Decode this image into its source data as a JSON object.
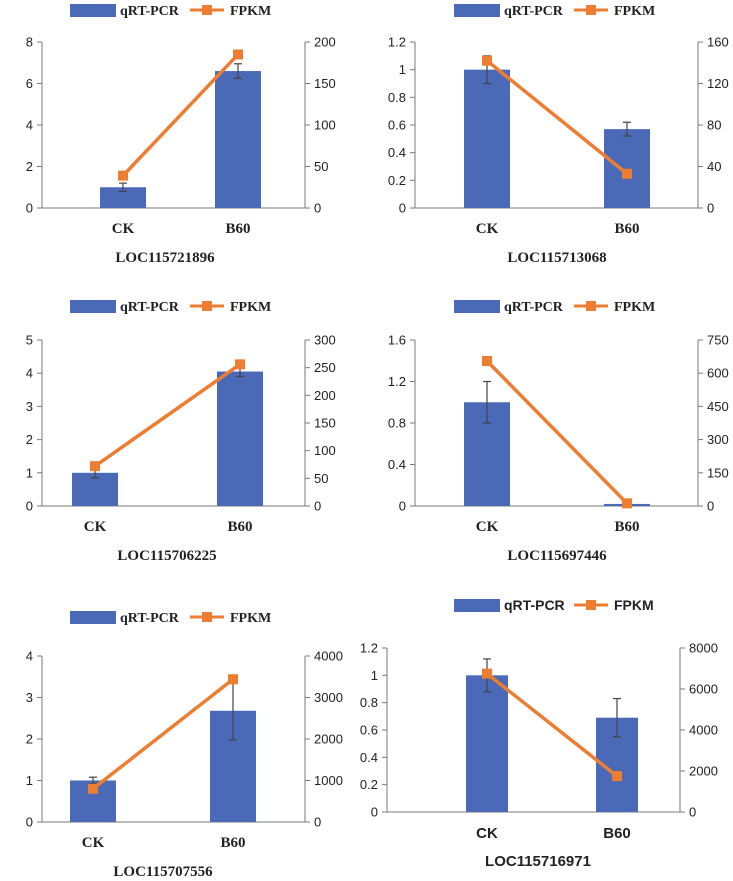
{
  "colors": {
    "bar": "#4a6ab8",
    "line": "#ed7d31",
    "axis": "#7a7a7a",
    "errorbar": "#444444"
  },
  "legend": {
    "bar_label": "qRT-PCR",
    "line_label": "FPKM"
  },
  "chart_data": [
    {
      "type": "bar",
      "title": "LOC115721896",
      "categories": [
        "CK",
        "B60"
      ],
      "series": [
        {
          "name": "qRT-PCR",
          "type": "bar",
          "axis": "left",
          "values": [
            1.0,
            6.6
          ],
          "errors": [
            0.2,
            0.35
          ]
        },
        {
          "name": "FPKM",
          "type": "line",
          "axis": "right",
          "values": [
            39,
            185
          ]
        }
      ],
      "ylim_left": [
        0,
        8
      ],
      "yticks_left": [
        "0",
        "2",
        "4",
        "6",
        "8"
      ],
      "ylim_right": [
        0,
        200
      ],
      "yticks_right": [
        "0",
        "50",
        "100",
        "150",
        "200"
      ]
    },
    {
      "type": "bar",
      "title": "LOC115713068",
      "categories": [
        "CK",
        "B60"
      ],
      "series": [
        {
          "name": "qRT-PCR",
          "type": "bar",
          "axis": "left",
          "values": [
            1.0,
            0.57
          ],
          "errors": [
            0.1,
            0.05
          ]
        },
        {
          "name": "FPKM",
          "type": "line",
          "axis": "right",
          "values": [
            142,
            33
          ]
        }
      ],
      "ylim_left": [
        0,
        1.2
      ],
      "yticks_left": [
        "0",
        "0.2",
        "0.4",
        "0.6",
        "0.8",
        "1",
        "1.2"
      ],
      "ylim_right": [
        0,
        160
      ],
      "yticks_right": [
        "0",
        "40",
        "80",
        "120",
        "160"
      ]
    },
    {
      "type": "bar",
      "title": "LOC115706225",
      "categories": [
        "CK",
        "B60"
      ],
      "series": [
        {
          "name": "qRT-PCR",
          "type": "bar",
          "axis": "left",
          "values": [
            1.0,
            4.05
          ],
          "errors": [
            0.15,
            0.15
          ]
        },
        {
          "name": "FPKM",
          "type": "line",
          "axis": "right",
          "values": [
            72,
            256
          ]
        }
      ],
      "ylim_left": [
        0,
        5
      ],
      "yticks_left": [
        "0",
        "1",
        "2",
        "3",
        "4",
        "5"
      ],
      "ylim_right": [
        0,
        300
      ],
      "yticks_right": [
        "0",
        "50",
        "100",
        "150",
        "200",
        "250",
        "300"
      ]
    },
    {
      "type": "bar",
      "title": "LOC115697446",
      "categories": [
        "CK",
        "B60"
      ],
      "series": [
        {
          "name": "qRT-PCR",
          "type": "bar",
          "axis": "left",
          "values": [
            1.0,
            0.02
          ],
          "errors": [
            0.2,
            0.0
          ]
        },
        {
          "name": "FPKM",
          "type": "line",
          "axis": "right",
          "values": [
            655,
            12
          ]
        }
      ],
      "ylim_left": [
        0,
        1.6
      ],
      "yticks_left": [
        "0",
        "0.4",
        "0.8",
        "1.2",
        "1.6"
      ],
      "ylim_right": [
        0,
        750
      ],
      "yticks_right": [
        "0",
        "150",
        "300",
        "450",
        "600",
        "750"
      ]
    },
    {
      "type": "bar",
      "title": "LOC115707556",
      "categories": [
        "CK",
        "B60"
      ],
      "series": [
        {
          "name": "qRT-PCR",
          "type": "bar",
          "axis": "left",
          "values": [
            1.0,
            2.68
          ],
          "errors": [
            0.08,
            0.7
          ]
        },
        {
          "name": "FPKM",
          "type": "line",
          "axis": "right",
          "values": [
            800,
            3440
          ]
        }
      ],
      "ylim_left": [
        0,
        4
      ],
      "yticks_left": [
        "0",
        "1",
        "2",
        "3",
        "4"
      ],
      "ylim_right": [
        0,
        4000
      ],
      "yticks_right": [
        "0",
        "1000",
        "2000",
        "3000",
        "4000"
      ]
    },
    {
      "type": "bar",
      "title": "LOC115716971",
      "categories": [
        "CK",
        "B60"
      ],
      "series": [
        {
          "name": "qRT-PCR",
          "type": "bar",
          "axis": "left",
          "values": [
            1.0,
            0.69
          ],
          "errors": [
            0.12,
            0.14
          ]
        },
        {
          "name": "FPKM",
          "type": "line",
          "axis": "right",
          "values": [
            6750,
            1750
          ]
        }
      ],
      "ylim_left": [
        0,
        1.2
      ],
      "yticks_left": [
        "0",
        "0.2",
        "0.4",
        "0.6",
        "0.8",
        "1",
        "1.2"
      ],
      "ylim_right": [
        0,
        8000
      ],
      "yticks_right": [
        "0",
        "2000",
        "4000",
        "6000",
        "8000"
      ]
    }
  ]
}
